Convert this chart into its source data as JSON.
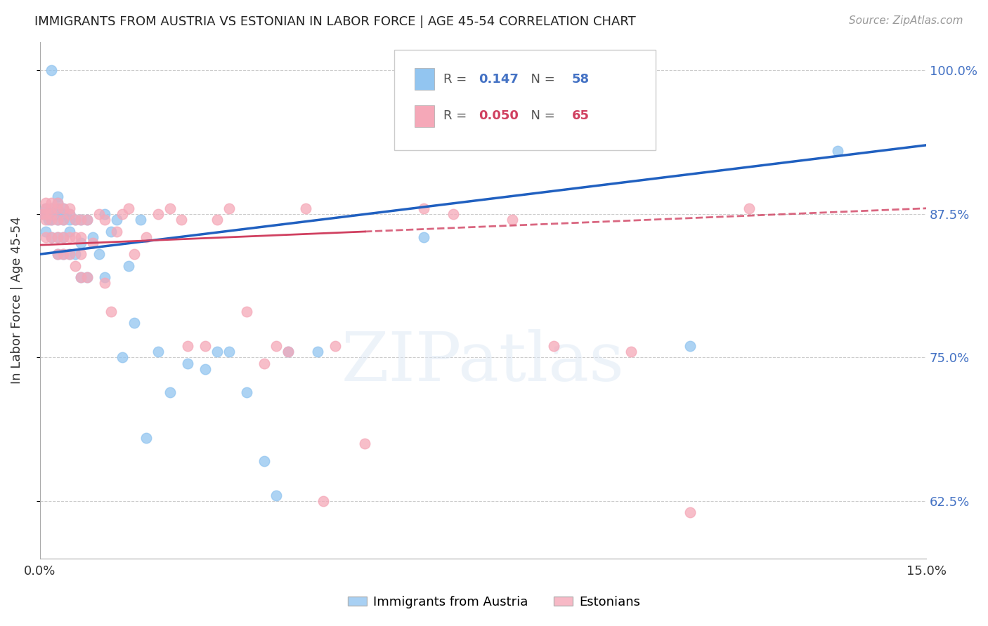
{
  "title": "IMMIGRANTS FROM AUSTRIA VS ESTONIAN IN LABOR FORCE | AGE 45-54 CORRELATION CHART",
  "source": "Source: ZipAtlas.com",
  "ylabel": "In Labor Force | Age 45-54",
  "xlim": [
    0.0,
    0.15
  ],
  "ylim": [
    0.575,
    1.025
  ],
  "yticks": [
    0.625,
    0.75,
    0.875,
    1.0
  ],
  "ytick_labels": [
    "62.5%",
    "75.0%",
    "87.5%",
    "100.0%"
  ],
  "xticks": [
    0.0,
    0.05,
    0.1,
    0.15
  ],
  "xtick_labels": [
    "0.0%",
    "",
    "",
    "15.0%"
  ],
  "R_austria": 0.147,
  "N_austria": 58,
  "R_estonian": 0.05,
  "N_estonian": 65,
  "color_austria": "#92c5f0",
  "color_estonian": "#f5a8b8",
  "line_color_austria": "#2060c0",
  "line_color_estonian": "#d04060",
  "background_color": "#ffffff",
  "austria_x": [
    0.0005,
    0.001,
    0.001,
    0.001,
    0.0015,
    0.002,
    0.002,
    0.002,
    0.002,
    0.002,
    0.003,
    0.003,
    0.003,
    0.003,
    0.003,
    0.003,
    0.003,
    0.004,
    0.004,
    0.004,
    0.004,
    0.004,
    0.005,
    0.005,
    0.005,
    0.005,
    0.006,
    0.006,
    0.007,
    0.007,
    0.007,
    0.008,
    0.008,
    0.009,
    0.01,
    0.011,
    0.011,
    0.012,
    0.013,
    0.014,
    0.015,
    0.016,
    0.017,
    0.018,
    0.02,
    0.022,
    0.025,
    0.028,
    0.03,
    0.032,
    0.035,
    0.038,
    0.04,
    0.042,
    0.047,
    0.065,
    0.11,
    0.135
  ],
  "austria_y": [
    0.875,
    0.86,
    0.875,
    0.88,
    0.87,
    0.855,
    0.87,
    0.875,
    0.88,
    1.0,
    0.84,
    0.855,
    0.87,
    0.875,
    0.88,
    0.885,
    0.89,
    0.84,
    0.855,
    0.87,
    0.875,
    0.88,
    0.84,
    0.86,
    0.87,
    0.875,
    0.84,
    0.87,
    0.82,
    0.85,
    0.87,
    0.82,
    0.87,
    0.855,
    0.84,
    0.82,
    0.875,
    0.86,
    0.87,
    0.75,
    0.83,
    0.78,
    0.87,
    0.68,
    0.755,
    0.72,
    0.745,
    0.74,
    0.755,
    0.755,
    0.72,
    0.66,
    0.63,
    0.755,
    0.755,
    0.855,
    0.76,
    0.93
  ],
  "estonian_x": [
    0.0005,
    0.001,
    0.001,
    0.001,
    0.001,
    0.001,
    0.002,
    0.002,
    0.002,
    0.002,
    0.002,
    0.003,
    0.003,
    0.003,
    0.003,
    0.003,
    0.004,
    0.004,
    0.004,
    0.004,
    0.005,
    0.005,
    0.005,
    0.005,
    0.006,
    0.006,
    0.006,
    0.007,
    0.007,
    0.007,
    0.007,
    0.008,
    0.008,
    0.009,
    0.01,
    0.011,
    0.011,
    0.012,
    0.013,
    0.014,
    0.015,
    0.016,
    0.018,
    0.02,
    0.022,
    0.024,
    0.025,
    0.028,
    0.03,
    0.032,
    0.035,
    0.038,
    0.04,
    0.042,
    0.045,
    0.048,
    0.05,
    0.055,
    0.065,
    0.07,
    0.08,
    0.087,
    0.1,
    0.11,
    0.12
  ],
  "estonian_y": [
    0.875,
    0.855,
    0.87,
    0.875,
    0.88,
    0.885,
    0.855,
    0.87,
    0.875,
    0.88,
    0.885,
    0.84,
    0.855,
    0.87,
    0.88,
    0.885,
    0.84,
    0.855,
    0.87,
    0.88,
    0.84,
    0.855,
    0.875,
    0.88,
    0.83,
    0.855,
    0.87,
    0.82,
    0.84,
    0.855,
    0.87,
    0.82,
    0.87,
    0.85,
    0.875,
    0.815,
    0.87,
    0.79,
    0.86,
    0.875,
    0.88,
    0.84,
    0.855,
    0.875,
    0.88,
    0.87,
    0.76,
    0.76,
    0.87,
    0.88,
    0.79,
    0.745,
    0.76,
    0.755,
    0.88,
    0.625,
    0.76,
    0.675,
    0.88,
    0.875,
    0.87,
    0.76,
    0.755,
    0.615,
    0.88
  ]
}
